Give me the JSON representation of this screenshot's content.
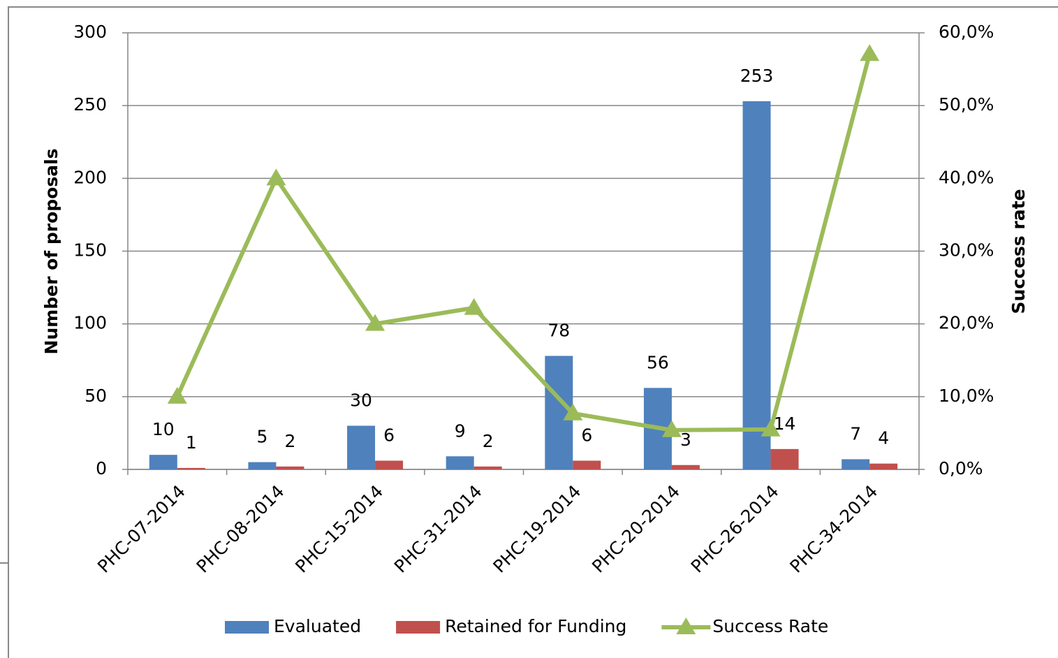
{
  "chart_data": {
    "type": "bar",
    "categories": [
      "PHC-07-2014",
      "PHC-08-2014",
      "PHC-15-2014",
      "PHC-31-2014",
      "PHC-19-2014",
      "PHC-20-2014",
      "PHC-26-2014",
      "PHC-34-2014"
    ],
    "series": [
      {
        "name": "Evaluated",
        "color": "#4f81bd",
        "values": [
          10,
          5,
          30,
          9,
          78,
          56,
          253,
          7
        ]
      },
      {
        "name": "Retained for Funding",
        "color": "#c0504d",
        "values": [
          1,
          2,
          6,
          2,
          6,
          3,
          14,
          4
        ]
      },
      {
        "name": "Success Rate",
        "type": "line",
        "axis": "y2",
        "color": "#9bbb59",
        "values": [
          10,
          40,
          20,
          22.2,
          7.7,
          5.4,
          5.5,
          57.1
        ]
      }
    ],
    "ylabel": "Number of proposals",
    "y2label": "Success rate",
    "ylim": [
      0,
      300
    ],
    "yticks": [
      0,
      50,
      100,
      150,
      200,
      250,
      300
    ],
    "y2lim": [
      0,
      60
    ],
    "y2ticks": [
      {
        "value": 0,
        "label": "0,0%"
      },
      {
        "value": 10,
        "label": "10,0%"
      },
      {
        "value": 20,
        "label": "20,0%"
      },
      {
        "value": 30,
        "label": "30,0%"
      },
      {
        "value": 40,
        "label": "40,0%"
      },
      {
        "value": 50,
        "label": "50,0%"
      },
      {
        "value": 60,
        "label": "60,0%"
      }
    ],
    "grid": true,
    "legend": "bottom"
  }
}
